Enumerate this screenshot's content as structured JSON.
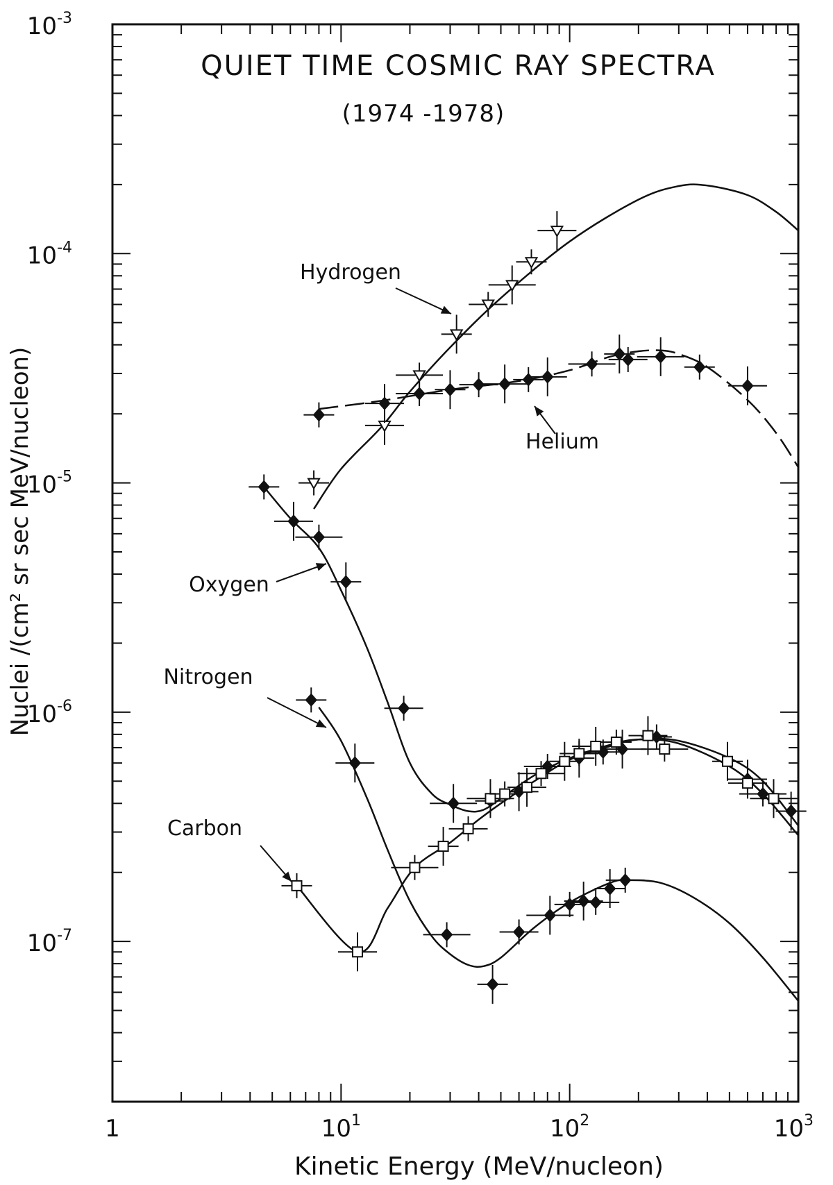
{
  "chart_data": {
    "type": "scatter",
    "title": "QUIET TIME COSMIC RAY SPECTRA",
    "subtitle": "(1974 -1978)",
    "xlabel": "Kinetic Energy (MeV/nucleon)",
    "ylabel": "Nuclei /(cm² sr sec MeV/nucleon)",
    "x_scale": "log",
    "y_scale": "log",
    "xlim": [
      1,
      1000
    ],
    "ylim": [
      2e-08,
      0.001
    ],
    "x_ticks": [
      {
        "value": 1,
        "base": "1",
        "exp": ""
      },
      {
        "value": 10,
        "base": "10",
        "exp": "1"
      },
      {
        "value": 100,
        "base": "10",
        "exp": "2"
      },
      {
        "value": 1000,
        "base": "10",
        "exp": "3"
      }
    ],
    "y_ticks": [
      {
        "value": 1e-07,
        "base": "10",
        "exp": "-7"
      },
      {
        "value": 1e-06,
        "base": "10",
        "exp": "-6"
      },
      {
        "value": 1e-05,
        "base": "10",
        "exp": "-5"
      },
      {
        "value": 0.0001,
        "base": "10",
        "exp": "-4"
      },
      {
        "value": 0.001,
        "base": "10",
        "exp": "-3"
      }
    ],
    "grid": false,
    "legend": "none",
    "series": [
      {
        "name": "Hydrogen",
        "marker": "open-triangle-down",
        "x": [
          7.6,
          15.5,
          22,
          32,
          44,
          56,
          68,
          88
        ],
        "y": [
          1e-05,
          1.78e-05,
          2.95e-05,
          4.45e-05,
          6e-05,
          7.3e-05,
          9.2e-05,
          0.000126
        ],
        "curve_x": [
          7.6,
          10,
          15,
          20,
          30,
          50,
          100,
          200,
          300,
          400,
          600,
          800,
          1000
        ],
        "curve_y": [
          7.7e-06,
          1.15e-05,
          1.75e-05,
          2.5e-05,
          3.9e-05,
          6.4e-05,
          0.000113,
          0.000172,
          0.000197,
          0.000198,
          0.00018,
          0.000152,
          0.000126
        ]
      },
      {
        "name": "Helium",
        "marker": "filled-diamond",
        "x": [
          8,
          15.5,
          22,
          30,
          40,
          52,
          66,
          80,
          125,
          165,
          180,
          250,
          370,
          600
        ],
        "y": [
          1.98e-05,
          2.22e-05,
          2.45e-05,
          2.55e-05,
          2.68e-05,
          2.7e-05,
          2.82e-05,
          2.9e-05,
          3.3e-05,
          3.65e-05,
          3.45e-05,
          3.55e-05,
          3.2e-05,
          2.65e-05
        ],
        "curve_x": [
          8,
          15,
          30,
          60,
          100,
          150,
          200,
          250,
          300,
          400,
          600,
          800,
          1000
        ],
        "curve_y": [
          2.1e-05,
          2.28e-05,
          2.55e-05,
          2.78e-05,
          3.1e-05,
          3.55e-05,
          3.75e-05,
          3.78e-05,
          3.65e-05,
          3.2e-05,
          2.3e-05,
          1.65e-05,
          1.17e-05
        ]
      },
      {
        "name": "Oxygen",
        "marker": "filled-diamond",
        "x": [
          4.6,
          6.2,
          8,
          10.5,
          18.8,
          31,
          45,
          60,
          80,
          110,
          140,
          170,
          240,
          600,
          700,
          930
        ],
        "y": [
          9.6e-06,
          6.8e-06,
          5.8e-06,
          3.7e-06,
          1.04e-06,
          4e-07,
          4.1e-07,
          4.5e-07,
          5.8e-07,
          6.3e-07,
          6.7e-07,
          6.9e-07,
          7.8e-07,
          5.1e-07,
          4.4e-07,
          3.7e-07
        ],
        "curve_x": [
          4.6,
          6,
          8,
          10,
          13,
          16,
          20,
          25,
          30,
          36,
          42,
          50,
          70,
          100,
          150,
          200,
          300,
          500,
          700,
          1000
        ],
        "curve_y": [
          9.6e-06,
          7e-06,
          5.2e-06,
          3.4e-06,
          1.9e-06,
          1.1e-06,
          6e-07,
          4.4e-07,
          3.95e-07,
          3.7e-07,
          3.75e-07,
          4.2e-07,
          5.3e-07,
          6.3e-07,
          7.2e-07,
          7.6e-07,
          7.3e-07,
          5.8e-07,
          4.4e-07,
          2.9e-07
        ]
      },
      {
        "name": "Nitrogen",
        "marker": "filled-diamond",
        "x": [
          7.4,
          11.5,
          29,
          46,
          60,
          82,
          100,
          115,
          130,
          150,
          175
        ],
        "y": [
          1.13e-06,
          6e-07,
          1.07e-07,
          6.5e-08,
          1.1e-07,
          1.3e-07,
          1.45e-07,
          1.5e-07,
          1.48e-07,
          1.7e-07,
          1.85e-07
        ],
        "curve_x": [
          8,
          10,
          13,
          16,
          20,
          25,
          30,
          36,
          42,
          50,
          70,
          100,
          150,
          180,
          250,
          350,
          500,
          700,
          1000
        ],
        "curve_y": [
          1.05e-06,
          7.5e-07,
          4.2e-07,
          2.5e-07,
          1.5e-07,
          1.05e-07,
          8.8e-08,
          7.9e-08,
          7.8e-08,
          8.5e-08,
          1.15e-07,
          1.48e-07,
          1.8e-07,
          1.85e-07,
          1.8e-07,
          1.55e-07,
          1.2e-07,
          8.5e-08,
          5.5e-08
        ]
      },
      {
        "name": "Carbon",
        "marker": "open-square",
        "x": [
          6.4,
          11.8,
          21,
          28,
          36,
          45,
          52,
          65,
          75,
          95,
          110,
          130,
          160,
          220,
          260,
          490,
          600,
          780
        ],
        "y": [
          1.75e-07,
          9e-08,
          2.1e-07,
          2.6e-07,
          3.1e-07,
          4.2e-07,
          4.4e-07,
          4.7e-07,
          5.4e-07,
          6.1e-07,
          6.6e-07,
          7.1e-07,
          7.4e-07,
          7.9e-07,
          6.9e-07,
          6.1e-07,
          4.9e-07,
          4.2e-07
        ],
        "curve_x": [
          6.4,
          11.8,
          16,
          21,
          30,
          40,
          50,
          70,
          100,
          150,
          200,
          300,
          500,
          700,
          1000
        ],
        "curve_y": [
          1.75e-07,
          9e-08,
          1.4e-07,
          2.1e-07,
          2.7e-07,
          3.4e-07,
          4e-07,
          5e-07,
          6.2e-07,
          7.1e-07,
          7.6e-07,
          7.5e-07,
          6.3e-07,
          5e-07,
          3.2e-07
        ]
      }
    ],
    "annotations": [
      {
        "text": "Hydrogen",
        "series": "Hydrogen"
      },
      {
        "text": "Helium",
        "series": "Helium"
      },
      {
        "text": "Oxygen",
        "series": "Oxygen"
      },
      {
        "text": "Nitrogen",
        "series": "Nitrogen"
      },
      {
        "text": "Carbon",
        "series": "Carbon"
      }
    ]
  }
}
